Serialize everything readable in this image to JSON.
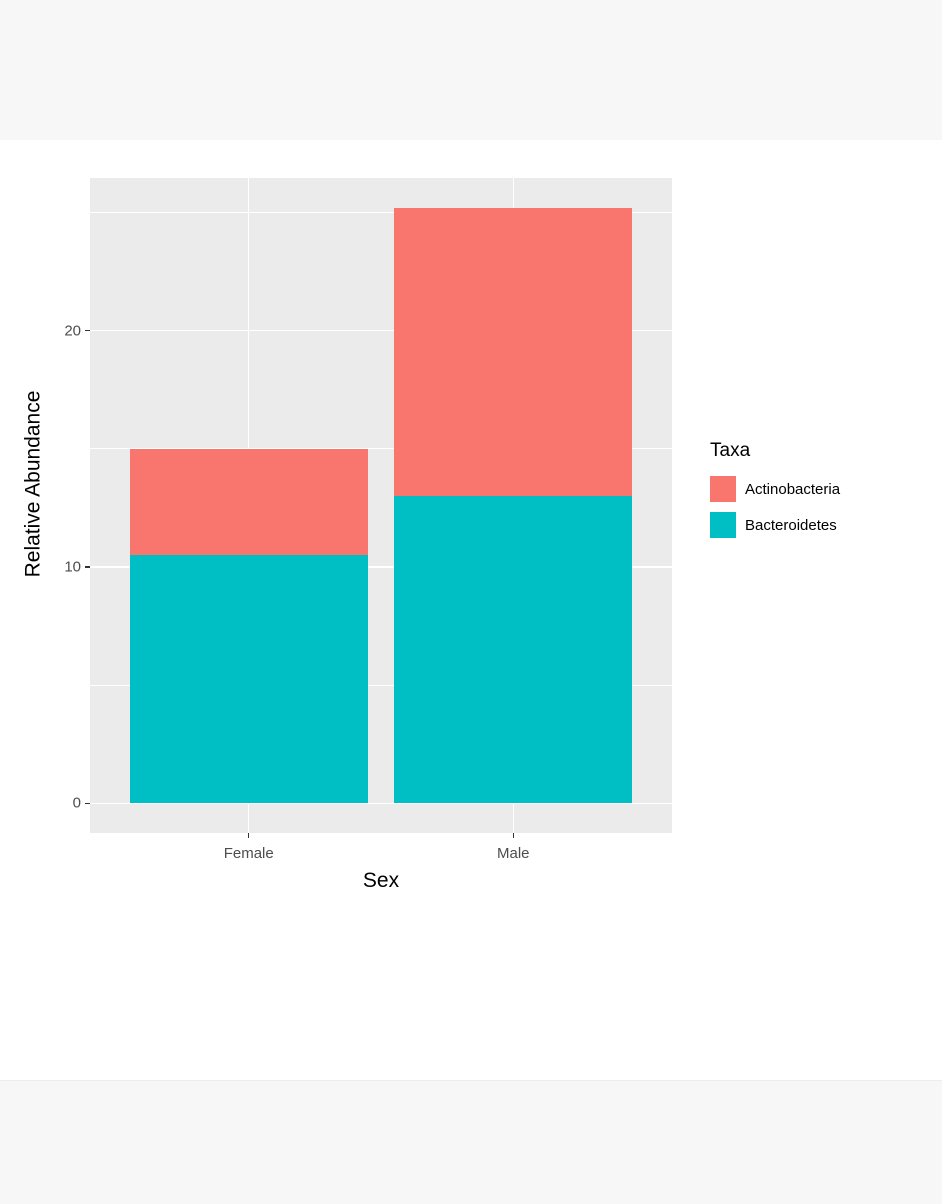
{
  "page": {
    "strip_color": "#f7f7f7",
    "canvas_color": "#ffffff"
  },
  "chart_data": {
    "type": "bar",
    "stacked": true,
    "title": "",
    "xlabel": "Sex",
    "ylabel": "Relative Abundance",
    "categories": [
      "Female",
      "Male"
    ],
    "series": [
      {
        "name": "Bacteroidetes",
        "color": "#00BFC4",
        "values": [
          10.5,
          13.0
        ]
      },
      {
        "name": "Actinobacteria",
        "color": "#F8766D",
        "values": [
          4.5,
          12.2
        ]
      }
    ],
    "y_ticks": [
      0,
      10,
      20
    ],
    "y_minor": [
      5,
      15,
      25
    ],
    "ylim": [
      -1.26,
      26.46
    ],
    "grid": true,
    "grid_color": "#ffffff",
    "panel_background": "#ebebeb",
    "axis_text_color": "#4d4d4d",
    "legend": {
      "title": "Taxa",
      "position": "right",
      "entries": [
        {
          "label": "Actinobacteria",
          "color": "#F8766D"
        },
        {
          "label": "Bacteroidetes",
          "color": "#00BFC4"
        }
      ]
    }
  }
}
